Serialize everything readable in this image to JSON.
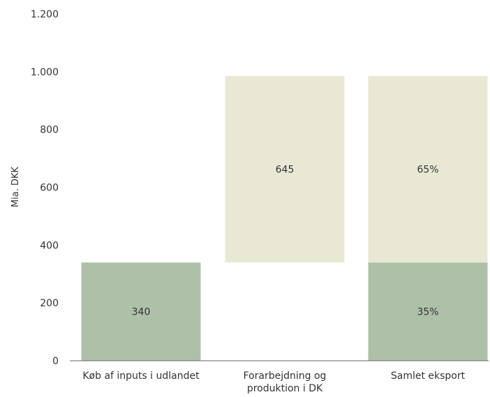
{
  "chart_data": {
    "type": "bar",
    "subtype": "waterfall-stacked",
    "ylabel": "Mia. DKK",
    "ylim": [
      0,
      1200
    ],
    "yticks": [
      0,
      200,
      400,
      600,
      800,
      1000,
      1200
    ],
    "ytick_labels": [
      "0",
      "200",
      "400",
      "600",
      "800",
      "1.000",
      "1.200"
    ],
    "categories": [
      {
        "lines": [
          "Køb af inputs i udlandet"
        ]
      },
      {
        "lines": [
          "Forarbejdning og",
          "produktion i DK"
        ]
      },
      {
        "lines": [
          "Samlet eksport"
        ]
      }
    ],
    "segments": [
      {
        "category": 0,
        "base": 0,
        "value": 340,
        "color": "#adc1a8",
        "label": "340"
      },
      {
        "category": 1,
        "base": 340,
        "value": 645,
        "color": "#e9e8d5",
        "label": "645"
      },
      {
        "category": 2,
        "base": 0,
        "value": 340,
        "color": "#adc1a8",
        "label": "35%"
      },
      {
        "category": 2,
        "base": 340,
        "value": 645,
        "color": "#e9e8d5",
        "label": "65%"
      }
    ],
    "colors": {
      "green": "#adc1a8",
      "beige": "#e9e8d5",
      "axis": "#666666",
      "text": "#333333"
    }
  }
}
